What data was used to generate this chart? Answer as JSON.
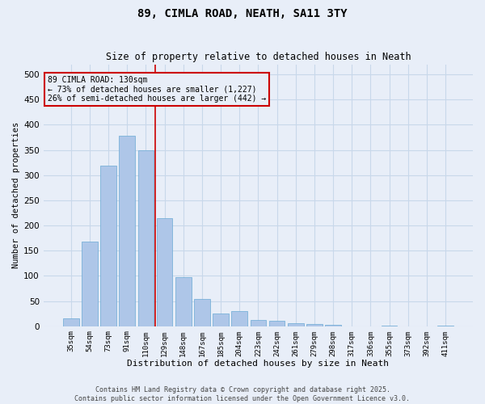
{
  "title1": "89, CIMLA ROAD, NEATH, SA11 3TY",
  "title2": "Size of property relative to detached houses in Neath",
  "xlabel": "Distribution of detached houses by size in Neath",
  "ylabel": "Number of detached properties",
  "categories": [
    "35sqm",
    "54sqm",
    "73sqm",
    "91sqm",
    "110sqm",
    "129sqm",
    "148sqm",
    "167sqm",
    "185sqm",
    "204sqm",
    "223sqm",
    "242sqm",
    "261sqm",
    "279sqm",
    "298sqm",
    "317sqm",
    "336sqm",
    "355sqm",
    "373sqm",
    "392sqm",
    "411sqm"
  ],
  "values": [
    15,
    168,
    318,
    378,
    349,
    215,
    97,
    54,
    25,
    30,
    13,
    11,
    6,
    5,
    3,
    0,
    0,
    1,
    0,
    0,
    1
  ],
  "bar_color": "#aec6e8",
  "bar_edge_color": "#6aaad4",
  "grid_color": "#c8d8ea",
  "background_color": "#e8eef8",
  "annotation_text": "89 CIMLA ROAD: 130sqm\n← 73% of detached houses are smaller (1,227)\n26% of semi-detached houses are larger (442) →",
  "annotation_box_color": "#cc0000",
  "ylim": [
    0,
    520
  ],
  "yticks": [
    0,
    50,
    100,
    150,
    200,
    250,
    300,
    350,
    400,
    450,
    500
  ],
  "footer1": "Contains HM Land Registry data © Crown copyright and database right 2025.",
  "footer2": "Contains public sector information licensed under the Open Government Licence v3.0."
}
